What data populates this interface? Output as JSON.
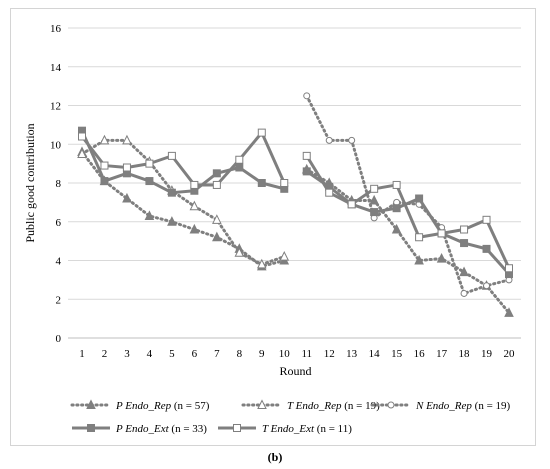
{
  "caption": "(b)",
  "chart_data": {
    "type": "line",
    "xlabel": "Round",
    "ylabel": "Public good contribution",
    "ylim": [
      0,
      16
    ],
    "yticks": [
      0,
      2,
      4,
      6,
      8,
      10,
      12,
      14,
      16
    ],
    "xlim": [
      1,
      20
    ],
    "xticks": [
      1,
      2,
      3,
      4,
      5,
      6,
      7,
      8,
      9,
      10,
      11,
      12,
      13,
      14,
      15,
      16,
      17,
      18,
      19,
      20
    ],
    "grid": "horizontal",
    "legend_position": "bottom",
    "colors": {
      "series": "#7f7f7f",
      "grid": "#d9d9d9",
      "axis": "#bfbfbf"
    },
    "series": [
      {
        "name": "P Endo_Rep (n = 57)",
        "legend_italic": "P Endo_Rep",
        "legend_rest": " (n = 57)",
        "style": "dotted",
        "marker": "triangle-filled",
        "width": 3,
        "segments": [
          {
            "x": [
              1,
              2,
              3,
              4,
              5,
              6,
              7,
              8,
              9,
              10
            ],
            "y": [
              9.6,
              8.1,
              7.2,
              6.3,
              6.0,
              5.6,
              5.2,
              4.6,
              3.7,
              4.0
            ]
          },
          {
            "x": [
              11,
              12,
              13,
              14,
              15,
              16,
              17,
              18,
              19,
              20
            ],
            "y": [
              8.7,
              8.0,
              7.1,
              7.1,
              5.6,
              4.0,
              4.1,
              3.4,
              2.7,
              1.3
            ]
          }
        ]
      },
      {
        "name": "T Endo_Rep (n = 19)",
        "legend_italic": "T Endo_Rep",
        "legend_rest": " (n = 19)",
        "style": "dotted",
        "marker": "triangle-open",
        "width": 3,
        "segments": [
          {
            "x": [
              1,
              2,
              3,
              4,
              5,
              6,
              7,
              8,
              9,
              10
            ],
            "y": [
              9.5,
              10.2,
              10.2,
              9.1,
              7.6,
              6.8,
              6.1,
              4.4,
              3.8,
              4.2
            ]
          }
        ]
      },
      {
        "name": "N Endo_Rep (n = 19)",
        "legend_italic": "N Endo_Rep",
        "legend_rest": " (n = 19)",
        "style": "dotted",
        "marker": "circle-open",
        "width": 3,
        "segments": [
          {
            "x": [
              11,
              12,
              13,
              14,
              15,
              16,
              17,
              18,
              19,
              20
            ],
            "y": [
              12.5,
              10.2,
              10.2,
              6.2,
              7.0,
              6.9,
              5.7,
              2.3,
              2.7,
              3.0
            ]
          }
        ]
      },
      {
        "name": "P Endo_Ext (n = 33)",
        "legend_italic": "P Endo_Ext",
        "legend_rest": " (n = 33)",
        "style": "solid",
        "marker": "square-filled",
        "width": 3,
        "segments": [
          {
            "x": [
              1,
              2,
              3,
              4,
              5,
              6,
              7,
              8,
              9,
              10
            ],
            "y": [
              10.7,
              8.1,
              8.5,
              8.1,
              7.5,
              7.6,
              8.5,
              8.8,
              8.0,
              7.7
            ]
          },
          {
            "x": [
              11,
              12,
              13,
              14,
              15,
              16,
              17,
              18,
              19,
              20
            ],
            "y": [
              8.6,
              7.8,
              6.9,
              6.5,
              6.7,
              7.2,
              5.4,
              4.9,
              4.6,
              3.3
            ]
          }
        ]
      },
      {
        "name": "T Endo_Ext (n = 11)",
        "legend_italic": "T Endo_Ext",
        "legend_rest": " (n = 11)",
        "style": "solid",
        "marker": "square-open",
        "width": 3,
        "segments": [
          {
            "x": [
              1,
              2,
              3,
              4,
              5,
              6,
              7,
              8,
              9,
              10
            ],
            "y": [
              10.4,
              8.9,
              8.8,
              9.0,
              9.4,
              7.9,
              7.9,
              9.2,
              10.6,
              8.0
            ]
          },
          {
            "x": [
              11,
              12,
              13,
              14,
              15,
              16,
              17,
              18,
              19,
              20
            ],
            "y": [
              9.4,
              7.5,
              6.9,
              7.7,
              7.9,
              5.2,
              5.4,
              5.6,
              6.1,
              3.6
            ]
          }
        ]
      }
    ]
  }
}
